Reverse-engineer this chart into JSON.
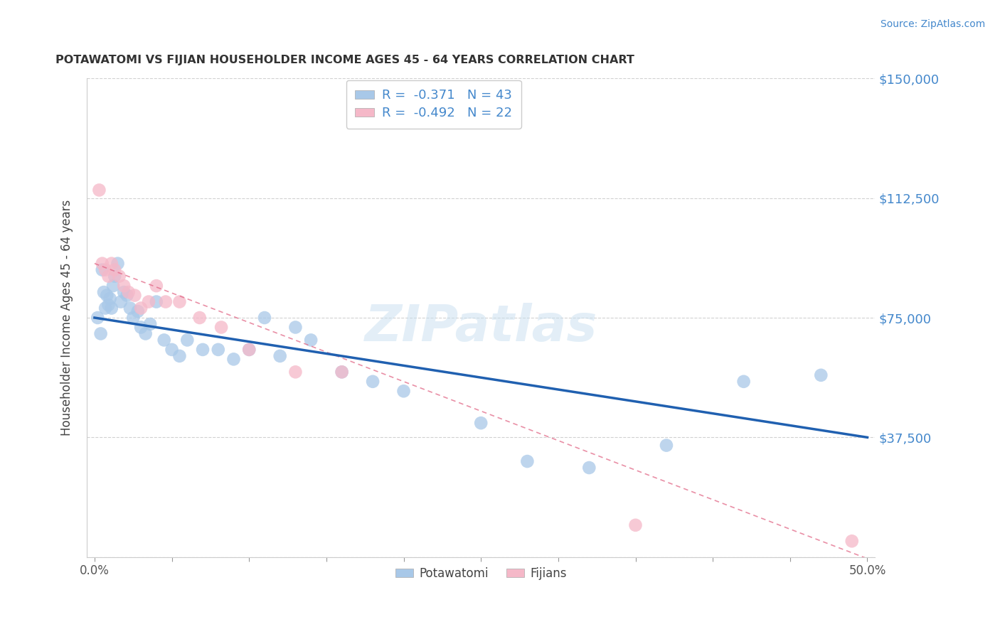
{
  "title": "POTAWATOMI VS FIJIAN HOUSEHOLDER INCOME AGES 45 - 64 YEARS CORRELATION CHART",
  "source": "Source: ZipAtlas.com",
  "ylabel": "Householder Income Ages 45 - 64 years",
  "xlim": [
    -0.005,
    0.505
  ],
  "ylim": [
    0,
    150000
  ],
  "yticks": [
    0,
    37500,
    75000,
    112500,
    150000
  ],
  "ytick_labels": [
    "",
    "$37,500",
    "$75,000",
    "$112,500",
    "$150,000"
  ],
  "xtick_positions": [
    0.0,
    0.05,
    0.1,
    0.15,
    0.2,
    0.25,
    0.3,
    0.35,
    0.4,
    0.45,
    0.5
  ],
  "xtick_labels": [
    "0.0%",
    "",
    "",
    "",
    "",
    "",
    "",
    "",
    "",
    "",
    "50.0%"
  ],
  "background_color": "#ffffff",
  "grid_color": "#cccccc",
  "potawatomi_color": "#a8c8e8",
  "fijian_color": "#f5b8c8",
  "potawatomi_line_color": "#2060b0",
  "fijian_line_color": "#e06080",
  "R_potawatomi": -0.371,
  "N_potawatomi": 43,
  "R_fijian": -0.492,
  "N_fijian": 22,
  "legend_label_potawatomi": "Potawatomi",
  "legend_label_fijian": "Fijians",
  "potawatomi_x": [
    0.002,
    0.004,
    0.005,
    0.006,
    0.007,
    0.008,
    0.009,
    0.01,
    0.011,
    0.012,
    0.013,
    0.015,
    0.017,
    0.019,
    0.021,
    0.023,
    0.025,
    0.028,
    0.03,
    0.033,
    0.036,
    0.04,
    0.045,
    0.05,
    0.055,
    0.06,
    0.07,
    0.08,
    0.09,
    0.1,
    0.11,
    0.12,
    0.13,
    0.14,
    0.16,
    0.18,
    0.2,
    0.25,
    0.28,
    0.32,
    0.37,
    0.42,
    0.47
  ],
  "potawatomi_y": [
    75000,
    70000,
    90000,
    83000,
    78000,
    82000,
    79000,
    81000,
    78000,
    85000,
    88000,
    92000,
    80000,
    83000,
    82000,
    78000,
    75000,
    77000,
    72000,
    70000,
    73000,
    80000,
    68000,
    65000,
    63000,
    68000,
    65000,
    65000,
    62000,
    65000,
    75000,
    63000,
    72000,
    68000,
    58000,
    55000,
    52000,
    42000,
    30000,
    28000,
    35000,
    55000,
    57000
  ],
  "fijian_x": [
    0.003,
    0.005,
    0.007,
    0.009,
    0.011,
    0.013,
    0.016,
    0.019,
    0.022,
    0.026,
    0.03,
    0.035,
    0.04,
    0.046,
    0.055,
    0.068,
    0.082,
    0.1,
    0.13,
    0.16,
    0.35,
    0.49
  ],
  "fijian_y": [
    115000,
    92000,
    90000,
    88000,
    92000,
    90000,
    88000,
    85000,
    83000,
    82000,
    78000,
    80000,
    85000,
    80000,
    80000,
    75000,
    72000,
    65000,
    58000,
    58000,
    10000,
    5000
  ],
  "line_intercept_potawatomi": 75000,
  "line_slope_potawatomi": -75000,
  "line_intercept_fijian": 92000,
  "line_slope_fijian": -185000
}
